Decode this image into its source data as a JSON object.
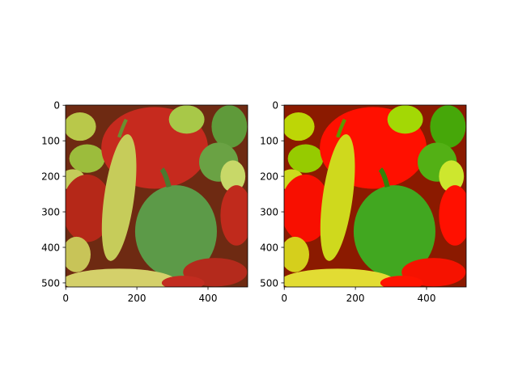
{
  "chart_data": [
    {
      "type": "image",
      "xlim": [
        -0.5,
        511.5
      ],
      "ylim": [
        511.5,
        -0.5
      ],
      "xticks": [
        0,
        200,
        400
      ],
      "yticks": [
        0,
        100,
        200,
        300,
        400,
        500
      ]
    },
    {
      "type": "image",
      "xlim": [
        -0.5,
        511.5
      ],
      "ylim": [
        511.5,
        -0.5
      ],
      "xticks": [
        0,
        200,
        400
      ],
      "yticks": [
        0,
        100,
        200,
        300,
        400,
        500
      ]
    }
  ]
}
